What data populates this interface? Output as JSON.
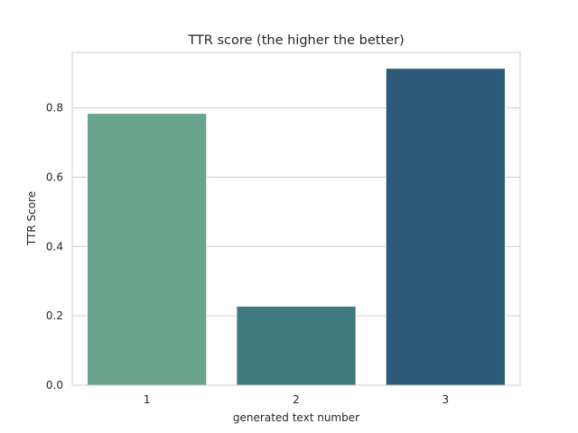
{
  "chart_data": {
    "type": "bar",
    "title": "TTR score (the higher the better)",
    "xlabel": "generated text number",
    "ylabel": "TTR Score",
    "categories": [
      "1",
      "2",
      "3"
    ],
    "values": [
      0.784,
      0.228,
      0.914
    ],
    "colors": [
      "#69a28d",
      "#3f7a7e",
      "#2c5a78"
    ],
    "ylim": [
      0,
      0.96
    ],
    "yticks": [
      "0.0",
      "0.2",
      "0.4",
      "0.6",
      "0.8"
    ],
    "ytick_values": [
      0,
      0.2,
      0.4,
      0.6,
      0.8
    ],
    "grid": true,
    "legend": "none"
  }
}
